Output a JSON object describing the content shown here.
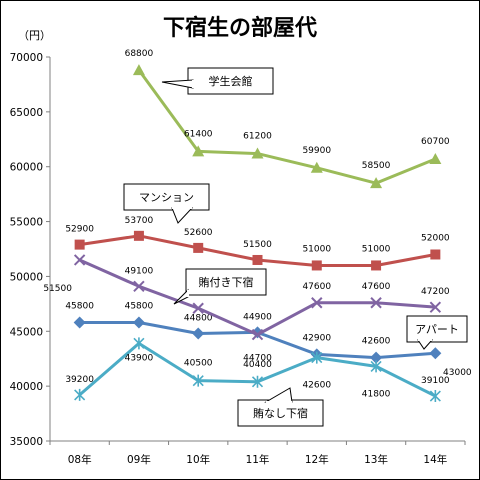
{
  "chart_data": {
    "type": "line",
    "title": "下宿生の部屋代",
    "ylabel": "（円）",
    "xlabel": "",
    "categories": [
      "08年",
      "09年",
      "10年",
      "11年",
      "12年",
      "13年",
      "14年"
    ],
    "ylim": [
      35000,
      70000
    ],
    "yticks": [
      "35000",
      "40000",
      "45000",
      "50000",
      "55000",
      "60000",
      "65000",
      "70000"
    ],
    "grid": false,
    "legend": "callouts",
    "series": [
      {
        "name": "学生会館",
        "color": "#9BBB59",
        "marker": "triangle",
        "values": [
          null,
          68800,
          61400,
          61200,
          59900,
          58500,
          60700
        ],
        "labels": [
          "",
          "68800",
          "61400",
          "61200",
          "59900",
          "58500",
          "60700"
        ]
      },
      {
        "name": "マンション",
        "color": "#C0504D",
        "marker": "square",
        "values": [
          52900,
          53700,
          52600,
          51500,
          51000,
          51000,
          52000
        ],
        "labels": [
          "52900",
          "53700",
          "52600",
          "51500",
          "51000",
          "51000",
          "52000"
        ]
      },
      {
        "name": "賄付き下宿",
        "color": "#8064A2",
        "marker": "x",
        "values": [
          51500,
          49100,
          47100,
          44700,
          47600,
          47600,
          47200
        ],
        "labels": [
          "51500",
          "49100",
          "",
          "44700",
          "47600",
          "47600",
          "47200"
        ]
      },
      {
        "name": "アパート",
        "color": "#4F81BD",
        "marker": "diamond",
        "values": [
          45800,
          45800,
          44800,
          44900,
          42900,
          42600,
          43000
        ],
        "labels": [
          "45800",
          "45800",
          "44800",
          "44900",
          "42900",
          "42600",
          "43000"
        ]
      },
      {
        "name": "賄なし下宿",
        "color": "#4BACC6",
        "marker": "star",
        "values": [
          39200,
          43900,
          40500,
          40400,
          42600,
          41800,
          39100
        ],
        "labels": [
          "39200",
          "43900",
          "40500",
          "40400",
          "42600",
          "41800",
          "39100"
        ]
      }
    ]
  }
}
